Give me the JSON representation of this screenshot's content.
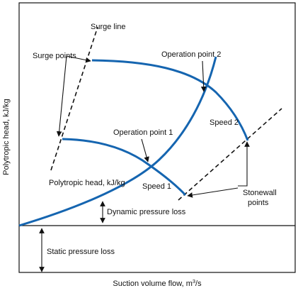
{
  "colors": {
    "curve": "#1565b0",
    "frame": "#111111",
    "annotation": "#111111",
    "background": "#ffffff"
  },
  "axes": {
    "y_label": "Polytropic head, kJ/kg",
    "x_label_main": "Suction volume flow, m",
    "x_label_sup": "3",
    "x_label_tail": "/s"
  },
  "labels": {
    "surge_line": "Surge line",
    "surge_points": "Surge points",
    "operation_point_2": "Operation point 2",
    "operation_point_1": "Operation point 1",
    "speed_2": "Speed 2",
    "speed_1": "Speed 1",
    "system_curve": "Polytropic head, kJ/kg",
    "dynamic_pressure_loss": "Dynamic pressure loss",
    "static_pressure_loss": "Static pressure loss",
    "stonewall_line1": "Stonewall",
    "stonewall_line2": "points"
  }
}
